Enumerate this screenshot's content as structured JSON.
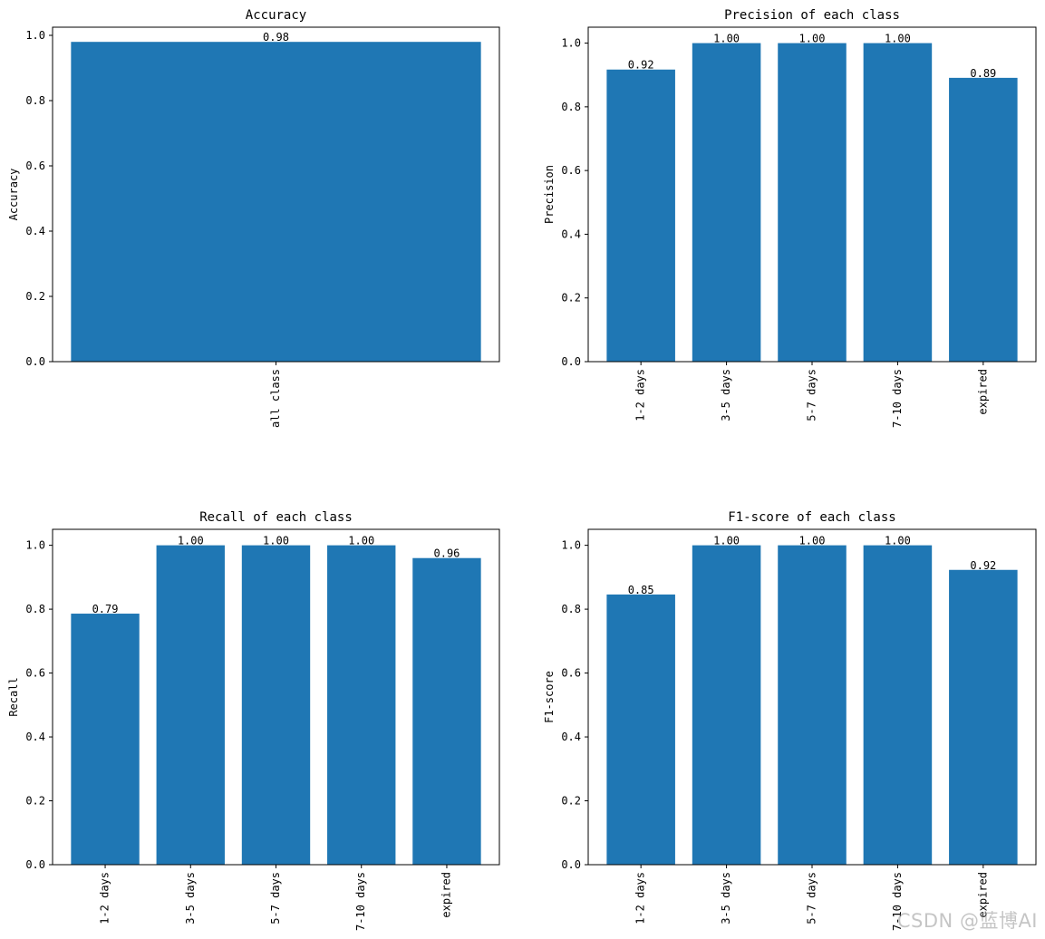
{
  "watermark": "CSDN @蓝博AI",
  "colors": {
    "bar": "#1f77b4",
    "axis": "#000000",
    "background": "#ffffff"
  },
  "chart_data": [
    {
      "type": "bar",
      "title": "Accuracy",
      "xlabel": "",
      "ylabel": "Accuracy",
      "categories": [
        "all class"
      ],
      "values": [
        0.98
      ],
      "value_labels": [
        "0.98"
      ],
      "ylim": [
        0,
        1.025
      ],
      "yticks": [
        "0.0",
        "0.2",
        "0.4",
        "0.6",
        "0.8",
        "1.0"
      ],
      "grid": false,
      "xtick_rotation": 90
    },
    {
      "type": "bar",
      "title": "Precision of each class",
      "xlabel": "",
      "ylabel": "Precision",
      "categories": [
        "1-2 days",
        "3-5 days",
        "5-7 days",
        "7-10 days",
        "expired"
      ],
      "values": [
        0.917,
        1.0,
        1.0,
        1.0,
        0.891
      ],
      "value_labels": [
        "0.92",
        "1.00",
        "1.00",
        "1.00",
        "0.89"
      ],
      "ylim": [
        0,
        1.05
      ],
      "yticks": [
        "0.0",
        "0.2",
        "0.4",
        "0.6",
        "0.8",
        "1.0"
      ],
      "grid": false,
      "xtick_rotation": 90
    },
    {
      "type": "bar",
      "title": "Recall of each class",
      "xlabel": "",
      "ylabel": "Recall",
      "categories": [
        "1-2 days",
        "3-5 days",
        "5-7 days",
        "7-10 days",
        "expired"
      ],
      "values": [
        0.786,
        1.0,
        1.0,
        1.0,
        0.96
      ],
      "value_labels": [
        "0.79",
        "1.00",
        "1.00",
        "1.00",
        "0.96"
      ],
      "ylim": [
        0,
        1.05
      ],
      "yticks": [
        "0.0",
        "0.2",
        "0.4",
        "0.6",
        "0.8",
        "1.0"
      ],
      "grid": false,
      "xtick_rotation": 90
    },
    {
      "type": "bar",
      "title": "F1-score of each class",
      "xlabel": "",
      "ylabel": "F1-score",
      "categories": [
        "1-2 days",
        "3-5 days",
        "5-7 days",
        "7-10 days",
        "expired"
      ],
      "values": [
        0.846,
        1.0,
        1.0,
        1.0,
        0.923
      ],
      "value_labels": [
        "0.85",
        "1.00",
        "1.00",
        "1.00",
        "0.92"
      ],
      "ylim": [
        0,
        1.05
      ],
      "yticks": [
        "0.0",
        "0.2",
        "0.4",
        "0.6",
        "0.8",
        "1.0"
      ],
      "grid": false,
      "xtick_rotation": 90
    }
  ]
}
